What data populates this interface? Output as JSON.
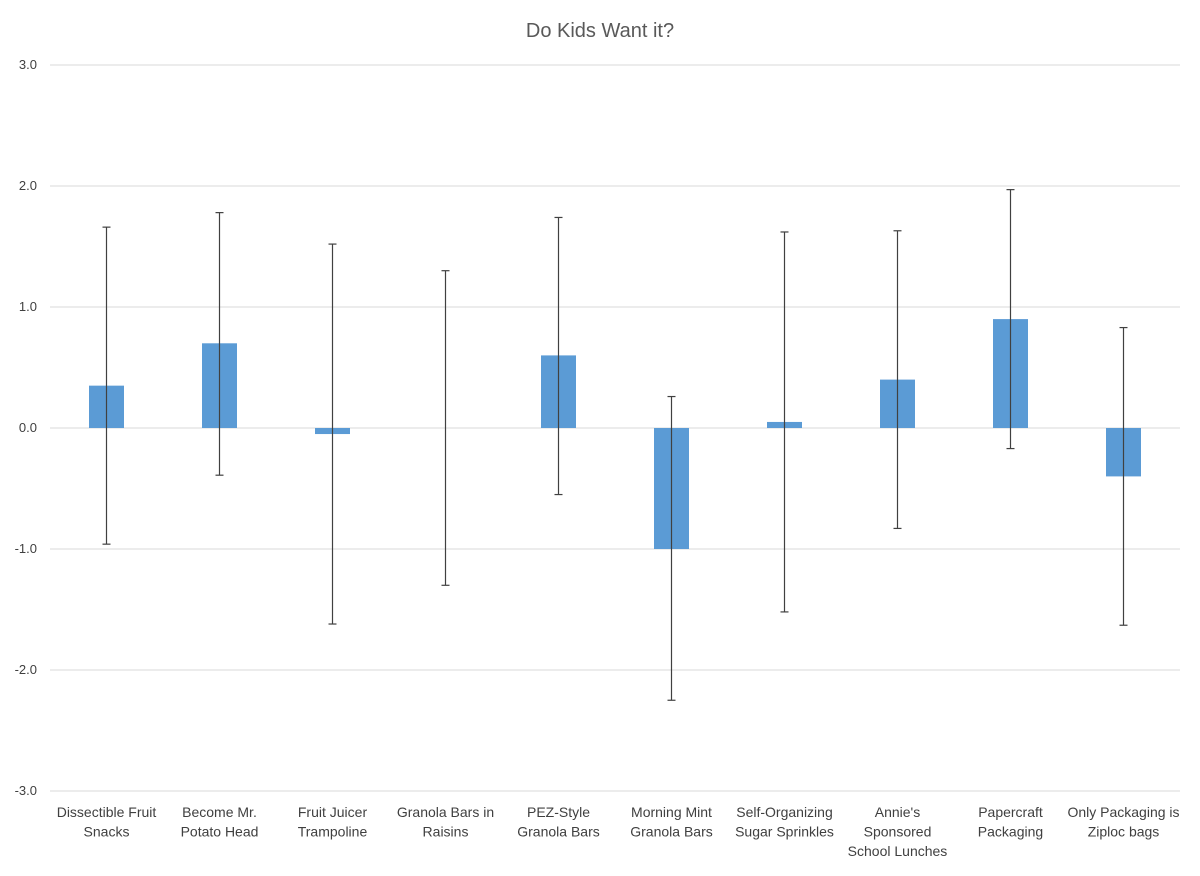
{
  "chart_data": {
    "type": "bar",
    "title": "Do Kids Want it?",
    "xlabel": "",
    "ylabel": "",
    "ylim": [
      -3.0,
      3.0
    ],
    "yticks": [
      3.0,
      2.0,
      1.0,
      0.0,
      -1.0,
      -2.0,
      -3.0
    ],
    "ytick_labels": [
      "3.0",
      "2.0",
      "1.0",
      "0.0",
      "-1.0",
      "-2.0",
      "-3.0"
    ],
    "grid": true,
    "legend": "none",
    "bar_color": "#5b9bd5",
    "error_bar_color": "#404040",
    "categories": [
      [
        "Dissectible Fruit",
        "Snacks"
      ],
      [
        "Become Mr.",
        "Potato Head"
      ],
      [
        "Fruit Juicer",
        "Trampoline"
      ],
      [
        "Granola Bars in",
        "Raisins"
      ],
      [
        "PEZ-Style",
        "Granola Bars"
      ],
      [
        "Morning Mint",
        "Granola Bars"
      ],
      [
        "Self-Organizing",
        "Sugar Sprinkles"
      ],
      [
        "Annie's",
        "Sponsored",
        "School Lunches"
      ],
      [
        "Papercraft",
        "Packaging"
      ],
      [
        "Only Packaging is",
        "Ziploc bags"
      ]
    ],
    "values": [
      0.35,
      0.7,
      -0.05,
      0.0,
      0.6,
      -1.0,
      0.05,
      0.4,
      0.9,
      -0.4
    ],
    "error_low": [
      -0.96,
      -0.39,
      -1.62,
      -1.3,
      -0.55,
      -2.25,
      -1.52,
      -0.83,
      -0.17,
      -1.63
    ],
    "error_high": [
      1.66,
      1.78,
      1.52,
      1.3,
      1.74,
      0.26,
      1.62,
      1.63,
      1.97,
      0.83
    ]
  }
}
